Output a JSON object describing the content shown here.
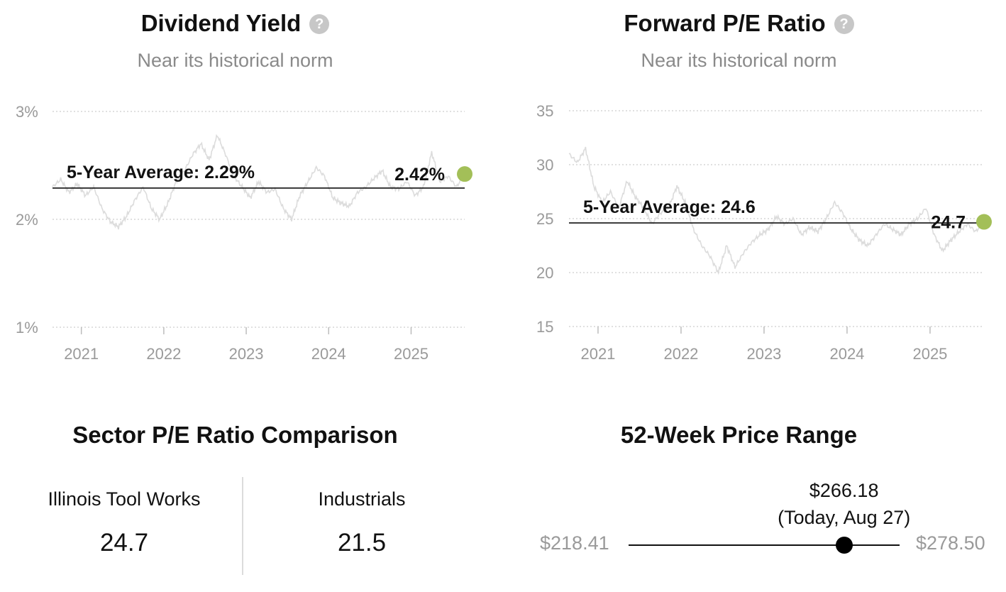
{
  "dividend_yield": {
    "title": "Dividend Yield",
    "help_icon": "question-circle-icon",
    "subtitle": "Near its historical norm",
    "average_label": "5-Year Average: 2.29%",
    "current_label": "2.42%",
    "current_dot_color": "#a3bf58"
  },
  "forward_pe": {
    "title": "Forward P/E Ratio",
    "help_icon": "question-circle-icon",
    "subtitle": "Near its historical norm",
    "average_label": "5-Year Average: 24.6",
    "current_label": "24.7",
    "current_dot_color": "#a3bf58"
  },
  "chart_data": [
    {
      "type": "line",
      "x_ticks": [
        "2021",
        "2022",
        "2023",
        "2024",
        "2025"
      ],
      "y_ticks": [
        "3%",
        "2%",
        "1%"
      ],
      "y_tick_values": [
        3,
        2,
        1
      ],
      "ylim": [
        1,
        3
      ],
      "x_range": [
        2020.65,
        2025.65
      ],
      "average": 2.29,
      "current": {
        "x": 2025.65,
        "y": 2.42
      },
      "grid": true,
      "series": [
        {
          "x": [
            2020.65,
            2020.75,
            2020.85,
            2020.95,
            2021.05,
            2021.15,
            2021.25,
            2021.35,
            2021.45,
            2021.55,
            2021.65,
            2021.75,
            2021.85,
            2021.95,
            2022.05,
            2022.15,
            2022.25,
            2022.35,
            2022.45,
            2022.55,
            2022.65,
            2022.75,
            2022.85,
            2022.95,
            2023.05,
            2023.15,
            2023.25,
            2023.35,
            2023.45,
            2023.55,
            2023.65,
            2023.75,
            2023.85,
            2023.95,
            2024.05,
            2024.15,
            2024.25,
            2024.35,
            2024.45,
            2024.55,
            2024.65,
            2024.75,
            2024.85,
            2024.95,
            2025.05,
            2025.15,
            2025.25,
            2025.35,
            2025.45,
            2025.55,
            2025.65
          ],
          "values": [
            2.3,
            2.37,
            2.25,
            2.33,
            2.22,
            2.3,
            2.1,
            1.98,
            1.93,
            2.03,
            2.18,
            2.3,
            2.1,
            2.0,
            2.15,
            2.35,
            2.45,
            2.6,
            2.7,
            2.55,
            2.78,
            2.6,
            2.4,
            2.3,
            2.2,
            2.35,
            2.25,
            2.28,
            2.1,
            2.0,
            2.22,
            2.35,
            2.48,
            2.4,
            2.2,
            2.15,
            2.12,
            2.25,
            2.3,
            2.38,
            2.45,
            2.3,
            2.28,
            2.35,
            2.22,
            2.3,
            2.62,
            2.35,
            2.4,
            2.3,
            2.42
          ]
        }
      ]
    },
    {
      "type": "line",
      "x_ticks": [
        "2021",
        "2022",
        "2023",
        "2024",
        "2025"
      ],
      "y_ticks": [
        "35",
        "30",
        "25",
        "20",
        "15"
      ],
      "y_tick_values": [
        35,
        30,
        25,
        20,
        15
      ],
      "ylim": [
        15,
        35
      ],
      "x_range": [
        2020.65,
        2025.65
      ],
      "average": 24.6,
      "current": {
        "x": 2025.65,
        "y": 24.7
      },
      "grid": true,
      "series": [
        {
          "x": [
            2020.65,
            2020.75,
            2020.85,
            2020.95,
            2021.05,
            2021.15,
            2021.25,
            2021.35,
            2021.45,
            2021.55,
            2021.65,
            2021.75,
            2021.85,
            2021.95,
            2022.05,
            2022.15,
            2022.25,
            2022.35,
            2022.45,
            2022.55,
            2022.65,
            2022.75,
            2022.85,
            2022.95,
            2023.05,
            2023.15,
            2023.25,
            2023.35,
            2023.45,
            2023.55,
            2023.65,
            2023.75,
            2023.85,
            2023.95,
            2024.05,
            2024.15,
            2024.25,
            2024.35,
            2024.45,
            2024.55,
            2024.65,
            2024.75,
            2024.85,
            2024.95,
            2025.05,
            2025.15,
            2025.25,
            2025.35,
            2025.45,
            2025.55,
            2025.65
          ],
          "values": [
            31.0,
            30.2,
            31.5,
            28.0,
            26.5,
            27.5,
            26.0,
            28.5,
            27.0,
            26.0,
            24.5,
            25.5,
            26.0,
            28.0,
            26.5,
            24.0,
            22.5,
            21.5,
            20.0,
            22.5,
            20.5,
            21.8,
            22.8,
            23.5,
            24.0,
            25.2,
            24.5,
            25.0,
            23.5,
            24.2,
            23.8,
            25.0,
            26.5,
            25.5,
            24.0,
            23.0,
            22.5,
            23.5,
            24.5,
            24.0,
            23.5,
            24.5,
            25.0,
            26.0,
            23.5,
            22.0,
            23.0,
            23.8,
            24.5,
            23.8,
            24.7
          ]
        }
      ]
    },
    {
      "type": "table",
      "title": "Sector P/E Ratio Comparison",
      "columns": [
        {
          "name": "Illinois Tool Works",
          "value": "24.7"
        },
        {
          "name": "Industrials",
          "value": "21.5"
        }
      ]
    },
    {
      "type": "range",
      "title": "52-Week Price Range",
      "low_label": "$218.41",
      "high_label": "$278.50",
      "low": 218.41,
      "high": 278.5,
      "current": 266.18,
      "current_label": "$266.18",
      "current_date_label": "(Today, Aug 27)"
    }
  ]
}
